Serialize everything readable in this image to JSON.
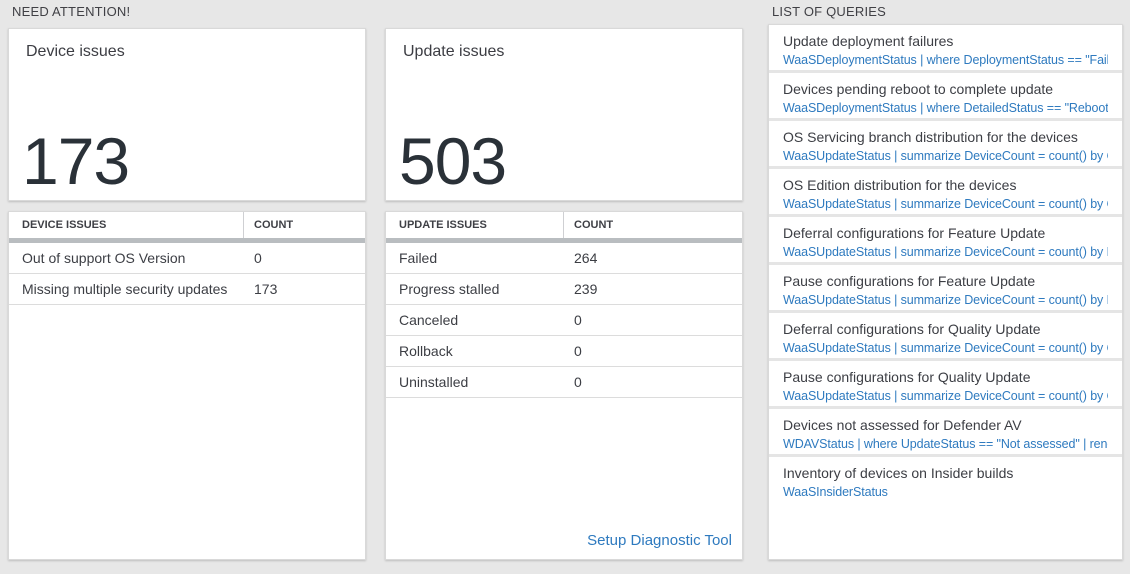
{
  "headers": {
    "need_attention": "NEED ATTENTION!",
    "list_of_queries": "LIST OF QUERIES"
  },
  "colors": {
    "page_background": "#e7e7e7",
    "accent_blue": "#2e7abf",
    "big_number_text": "#2a3138",
    "table_header_bar": "#b9bdc0"
  },
  "device_card": {
    "title": "Device issues",
    "count": "173"
  },
  "device_table": {
    "headers": [
      "DEVICE ISSUES",
      "COUNT"
    ],
    "rows": [
      [
        "Out of support OS Version",
        "0"
      ],
      [
        "Missing multiple security updates",
        "173"
      ]
    ]
  },
  "update_card": {
    "title": "Update issues",
    "count": "503"
  },
  "update_table": {
    "headers": [
      "UPDATE ISSUES",
      "COUNT"
    ],
    "rows": [
      [
        "Failed",
        "264"
      ],
      [
        "Progress stalled",
        "239"
      ],
      [
        "Canceled",
        "0"
      ],
      [
        "Rollback",
        "0"
      ],
      [
        "Uninstalled",
        "0"
      ]
    ],
    "footer_link": "Setup Diagnostic Tool"
  },
  "queries": {
    "items": [
      {
        "title": "Update deployment failures",
        "query": "WaaSDeploymentStatus | where DeploymentStatus == \"Failed\" |..."
      },
      {
        "title": "Devices pending reboot to complete update",
        "query": "WaaSDeploymentStatus | where DetailedStatus == \"Reboot pend..."
      },
      {
        "title": "OS Servicing branch distribution for the devices",
        "query": "WaaSUpdateStatus | summarize DeviceCount = count() by OSSer..."
      },
      {
        "title": "OS Edition distribution for the devices",
        "query": "WaaSUpdateStatus | summarize DeviceCount = count() by OSEdit..."
      },
      {
        "title": "Deferral configurations for Feature Update",
        "query": "WaaSUpdateStatus | summarize DeviceCount = count() by Featur..."
      },
      {
        "title": "Pause configurations for Feature Update",
        "query": "WaaSUpdateStatus | summarize DeviceCount = count() by Featur..."
      },
      {
        "title": "Deferral configurations for Quality Update",
        "query": "WaaSUpdateStatus | summarize DeviceCount = count() by Qualit..."
      },
      {
        "title": "Pause configurations for Quality Update",
        "query": "WaaSUpdateStatus | summarize DeviceCount = count() by Qualit..."
      },
      {
        "title": "Devices not assessed for Defender AV",
        "query": "WDAVStatus | where UpdateStatus == \"Not assessed\" | render ta..."
      },
      {
        "title": "Inventory of devices on Insider builds",
        "query": "WaaSInsiderStatus"
      }
    ]
  }
}
